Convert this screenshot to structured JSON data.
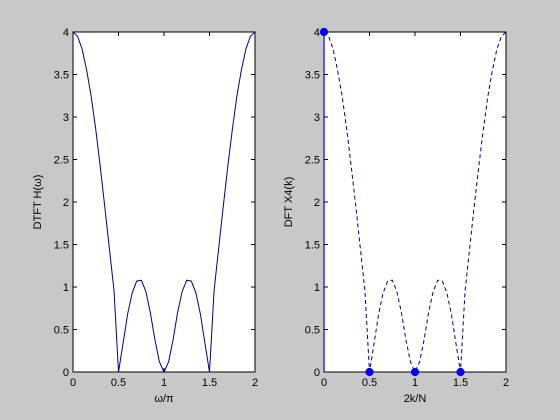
{
  "window": {
    "background": "#c8c8c8"
  },
  "chart_data": [
    {
      "type": "line",
      "xlabel": "ω/π",
      "ylabel": "DTFT H(ω)",
      "xlim": [
        0,
        2
      ],
      "ylim": [
        0,
        4
      ],
      "xticks": [
        "0",
        "0.5",
        "1",
        "1.5",
        "2"
      ],
      "yticks": [
        "0",
        "0.5",
        "1",
        "1.5",
        "2",
        "2.5",
        "3",
        "3.5",
        "4"
      ],
      "grid": false,
      "line_color": "#00008b",
      "line_style": "solid",
      "series": [
        {
          "x": [
            0,
            0.05,
            0.1,
            0.15,
            0.2,
            0.25,
            0.3,
            0.35,
            0.4,
            0.45,
            0.5,
            0.55,
            0.6,
            0.65,
            0.7,
            0.75,
            0.8,
            0.85,
            0.9,
            0.95,
            1.0,
            1.05,
            1.1,
            1.15,
            1.2,
            1.25,
            1.3,
            1.35,
            1.4,
            1.45,
            1.5,
            1.55,
            1.6,
            1.65,
            1.7,
            1.75,
            1.8,
            1.85,
            1.9,
            1.95,
            2.0
          ],
          "y": [
            4.0,
            3.95,
            3.8,
            3.55,
            3.24,
            2.85,
            2.41,
            1.94,
            1.45,
            0.96,
            0.0,
            0.34,
            0.68,
            0.93,
            1.07,
            1.08,
            0.95,
            0.7,
            0.38,
            0.12,
            0.0,
            0.12,
            0.38,
            0.7,
            0.95,
            1.08,
            1.07,
            0.93,
            0.68,
            0.34,
            0.0,
            0.96,
            1.45,
            1.94,
            2.41,
            2.85,
            3.24,
            3.55,
            3.8,
            3.95,
            4.0
          ]
        }
      ]
    },
    {
      "type": "line",
      "xlabel": "2k/N",
      "ylabel": "DFT X4(k)",
      "xlim": [
        0,
        2
      ],
      "ylim": [
        0,
        4
      ],
      "xticks": [
        "0",
        "0.5",
        "1",
        "1.5",
        "2"
      ],
      "yticks": [
        "0",
        "0.5",
        "1",
        "1.5",
        "2",
        "2.5",
        "3",
        "3.5",
        "4"
      ],
      "grid": false,
      "line_color": "#00008b",
      "line_style": "dashed",
      "marker_color": "#0000ff",
      "series": [
        {
          "x": [
            0,
            0.05,
            0.1,
            0.15,
            0.2,
            0.25,
            0.3,
            0.35,
            0.4,
            0.45,
            0.5,
            0.55,
            0.6,
            0.65,
            0.7,
            0.75,
            0.8,
            0.85,
            0.9,
            0.95,
            1.0,
            1.05,
            1.1,
            1.15,
            1.2,
            1.25,
            1.3,
            1.35,
            1.4,
            1.45,
            1.5,
            1.55,
            1.6,
            1.65,
            1.7,
            1.75,
            1.8,
            1.85,
            1.9,
            1.95,
            2.0
          ],
          "y": [
            4.0,
            3.95,
            3.8,
            3.55,
            3.24,
            2.85,
            2.41,
            1.94,
            1.45,
            0.96,
            0.0,
            0.34,
            0.68,
            0.93,
            1.07,
            1.08,
            0.95,
            0.7,
            0.38,
            0.12,
            0.0,
            0.12,
            0.38,
            0.7,
            0.95,
            1.08,
            1.07,
            0.93,
            0.68,
            0.34,
            0.0,
            0.96,
            1.45,
            1.94,
            2.41,
            2.85,
            3.24,
            3.55,
            3.8,
            3.95,
            4.0
          ]
        }
      ],
      "stems": {
        "x": [
          0,
          0.5,
          1.0,
          1.5
        ],
        "y": [
          4,
          0,
          0,
          0
        ]
      }
    }
  ]
}
